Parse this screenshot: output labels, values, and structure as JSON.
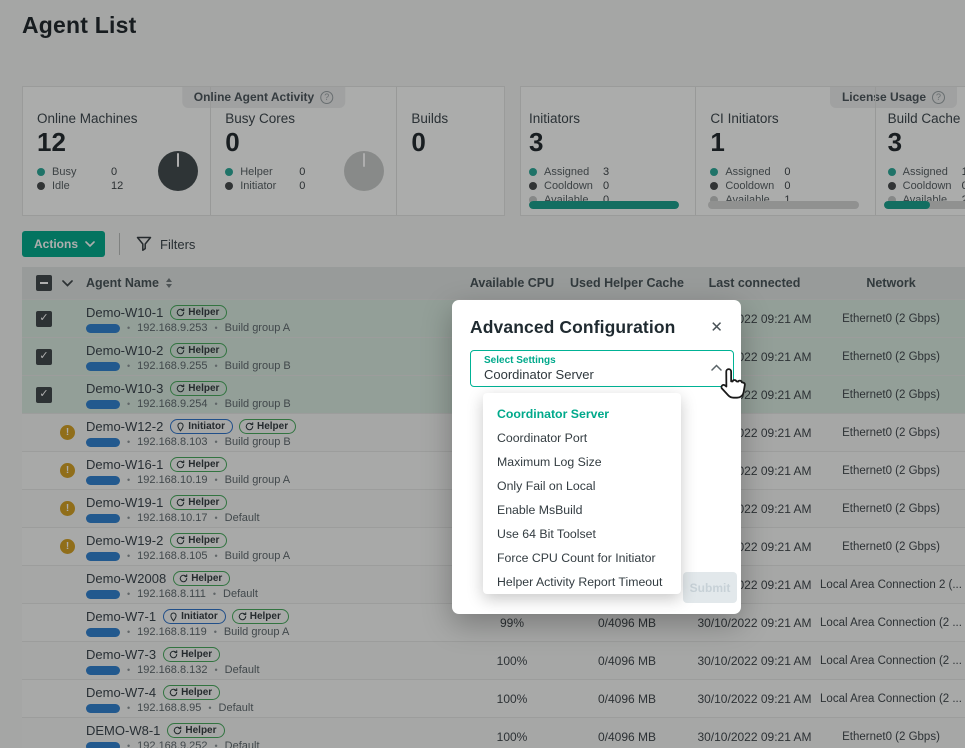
{
  "title": "Agent List",
  "colors": {
    "accent": "#00a98b",
    "selected_row": "#d7e9df",
    "warning_icon": "#d2a023",
    "helper_badge_border": "#46a95c",
    "initiator_badge_border": "#2d72c8",
    "progress_pill_blue": "#2f80cf",
    "legend_teal": "#2aa897",
    "legend_dark": "#45494b",
    "legend_light": "#c3c6c5"
  },
  "stats": {
    "activity": {
      "tab_label": "Online Agent Activity",
      "cards": [
        {
          "title": "Online Machines",
          "value": "12",
          "pie": "dark",
          "legend": [
            {
              "label": "Busy",
              "value": "0",
              "color": "teal"
            },
            {
              "label": "Idle",
              "value": "12",
              "color": "dark"
            }
          ]
        },
        {
          "title": "Busy Cores",
          "value": "0",
          "pie": "light",
          "legend": [
            {
              "label": "Helper",
              "value": "0",
              "color": "teal"
            },
            {
              "label": "Initiator",
              "value": "0",
              "color": "dark"
            }
          ]
        },
        {
          "title": "Builds",
          "value": "0",
          "pie": "none",
          "legend": []
        }
      ]
    },
    "license": {
      "tab_label": "License Usage",
      "cards": [
        {
          "title": "Initiators",
          "value": "3",
          "bar_percent": 100,
          "legend": [
            {
              "label": "Assigned",
              "value": "3",
              "color": "teal"
            },
            {
              "label": "Cooldown",
              "value": "0",
              "color": "dark"
            },
            {
              "label": "Available",
              "value": "0",
              "color": "light"
            }
          ]
        },
        {
          "title": "CI Initiators",
          "value": "1",
          "bar_percent": 0,
          "legend": [
            {
              "label": "Assigned",
              "value": "0",
              "color": "teal"
            },
            {
              "label": "Cooldown",
              "value": "0",
              "color": "dark"
            },
            {
              "label": "Available",
              "value": "1",
              "color": "light"
            }
          ]
        },
        {
          "title": "Build Cache",
          "value": "3",
          "bar_percent": 33,
          "legend": [
            {
              "label": "Assigned",
              "value": "1",
              "color": "teal"
            },
            {
              "label": "Cooldown",
              "value": "0",
              "color": "dark"
            },
            {
              "label": "Available",
              "value": "2",
              "color": "light"
            }
          ]
        }
      ]
    }
  },
  "toolbar": {
    "actions_label": "Actions",
    "filters_label": "Filters"
  },
  "table": {
    "headers": {
      "agent_name": "Agent Name",
      "available_cpu": "Available CPU",
      "used_helper_cache": "Used Helper Cache",
      "last_connected": "Last connected",
      "network": "Network"
    },
    "rows": [
      {
        "name": "Demo-W10-1",
        "badges": [
          {
            "type": "helper",
            "label": "Helper"
          }
        ],
        "selected": true,
        "warning": false,
        "ip": "192.168.9.253",
        "group": "Build group A",
        "cpu": "",
        "cache": "",
        "last_connected": "30/10/2022 09:21 AM",
        "network": "Ethernet0 (2 Gbps)"
      },
      {
        "name": "Demo-W10-2",
        "badges": [
          {
            "type": "helper",
            "label": "Helper"
          }
        ],
        "selected": true,
        "warning": false,
        "ip": "192.168.9.255",
        "group": "Build group B",
        "cpu": "",
        "cache": "",
        "last_connected": "30/10/2022 09:21 AM",
        "network": "Ethernet0 (2 Gbps)"
      },
      {
        "name": "Demo-W10-3",
        "badges": [
          {
            "type": "helper",
            "label": "Helper"
          }
        ],
        "selected": true,
        "warning": false,
        "ip": "192.168.9.254",
        "group": "Build group B",
        "cpu": "",
        "cache": "",
        "last_connected": "30/10/2022 09:21 AM",
        "network": "Ethernet0 (2 Gbps)"
      },
      {
        "name": "Demo-W12-2",
        "badges": [
          {
            "type": "initiator",
            "label": "Initiator"
          },
          {
            "type": "helper",
            "label": "Helper"
          }
        ],
        "selected": false,
        "warning": true,
        "ip": "192.168.8.103",
        "group": "Build group B",
        "cpu": "",
        "cache": "",
        "last_connected": "30/10/2022 09:21 AM",
        "network": "Ethernet0 (2 Gbps)"
      },
      {
        "name": "Demo-W16-1",
        "badges": [
          {
            "type": "helper",
            "label": "Helper"
          }
        ],
        "selected": false,
        "warning": true,
        "ip": "192.168.10.19",
        "group": "Build group A",
        "cpu": "",
        "cache": "",
        "last_connected": "30/10/2022 09:21 AM",
        "network": "Ethernet0 (2 Gbps)"
      },
      {
        "name": "Demo-W19-1",
        "badges": [
          {
            "type": "helper",
            "label": "Helper"
          }
        ],
        "selected": false,
        "warning": true,
        "ip": "192.168.10.17",
        "group": "Default",
        "cpu": "",
        "cache": "",
        "last_connected": "30/10/2022 09:21 AM",
        "network": "Ethernet0 (2 Gbps)"
      },
      {
        "name": "Demo-W19-2",
        "badges": [
          {
            "type": "helper",
            "label": "Helper"
          }
        ],
        "selected": false,
        "warning": true,
        "ip": "192.168.8.105",
        "group": "Build group A",
        "cpu": "",
        "cache": "",
        "last_connected": "30/10/2022 09:21 AM",
        "network": "Ethernet0 (2 Gbps)"
      },
      {
        "name": "Demo-W2008",
        "badges": [
          {
            "type": "helper",
            "label": "Helper"
          }
        ],
        "selected": false,
        "warning": false,
        "ip": "192.168.8.111",
        "group": "Default",
        "cpu": "",
        "cache": "",
        "last_connected": "30/10/2022 09:21 AM",
        "network": "Local Area Connection 2 (..."
      },
      {
        "name": "Demo-W7-1",
        "badges": [
          {
            "type": "initiator",
            "label": "Initiator"
          },
          {
            "type": "helper",
            "label": "Helper"
          }
        ],
        "selected": false,
        "warning": false,
        "ip": "192.168.8.119",
        "group": "Build group A",
        "cpu": "99%",
        "cache": "0/4096 MB",
        "last_connected": "30/10/2022 09:21 AM",
        "network": "Local Area Connection (2 ..."
      },
      {
        "name": "Demo-W7-3",
        "badges": [
          {
            "type": "helper",
            "label": "Helper"
          }
        ],
        "selected": false,
        "warning": false,
        "ip": "192.168.8.132",
        "group": "Default",
        "cpu": "100%",
        "cache": "0/4096 MB",
        "last_connected": "30/10/2022 09:21 AM",
        "network": "Local Area Connection (2 ..."
      },
      {
        "name": "Demo-W7-4",
        "badges": [
          {
            "type": "helper",
            "label": "Helper"
          }
        ],
        "selected": false,
        "warning": false,
        "ip": "192.168.8.95",
        "group": "Default",
        "cpu": "100%",
        "cache": "0/4096 MB",
        "last_connected": "30/10/2022 09:21 AM",
        "network": "Local Area Connection (2 ..."
      },
      {
        "name": "DEMO-W8-1",
        "badges": [
          {
            "type": "helper",
            "label": "Helper"
          }
        ],
        "selected": false,
        "warning": false,
        "ip": "192.168.9.252",
        "group": "Default",
        "cpu": "100%",
        "cache": "0/4096 MB",
        "last_connected": "30/10/2022 09:21 AM",
        "network": "Ethernet0 (2 Gbps)"
      }
    ]
  },
  "modal": {
    "title": "Advanced Configuration",
    "select": {
      "label": "Select Settings",
      "value": "Coordinator Server"
    },
    "selected_option": "Coordinator Server",
    "options": [
      "Coordinator Server",
      "Coordinator Port",
      "Maximum Log Size",
      "Only Fail on Local",
      "Enable MsBuild",
      "Use 64 Bit Toolset",
      "Force CPU Count for Initiator",
      "Helper Activity Report Timeout"
    ]
  }
}
